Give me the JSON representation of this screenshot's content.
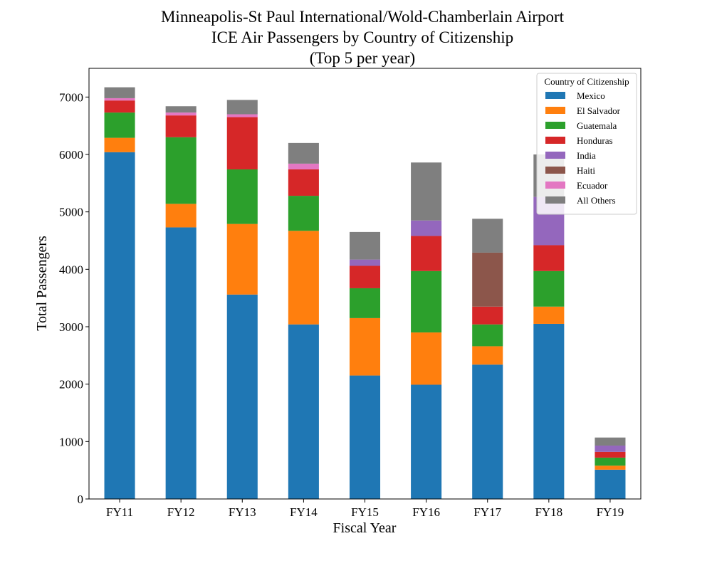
{
  "chart_data": {
    "type": "bar",
    "stacked": true,
    "title_lines": [
      "Minneapolis-St Paul International/Wold-Chamberlain Airport",
      "ICE Air Passengers by Country of Citizenship",
      "(Top 5 per year)"
    ],
    "xlabel": "Fiscal Year",
    "ylabel": "Total Passengers",
    "ylim": [
      0,
      7500
    ],
    "yticks": [
      0,
      1000,
      2000,
      3000,
      4000,
      5000,
      6000,
      7000
    ],
    "categories": [
      "FY11",
      "FY12",
      "FY13",
      "FY14",
      "FY15",
      "FY16",
      "FY17",
      "FY18",
      "FY19"
    ],
    "legend": {
      "title": "Country of Citizenship",
      "position": "top-right"
    },
    "series": [
      {
        "name": "Mexico",
        "color": "#1f77b4",
        "values": [
          6040,
          4730,
          3560,
          3040,
          2150,
          1990,
          2340,
          3050,
          510
        ]
      },
      {
        "name": "El Salvador",
        "color": "#ff7f0e",
        "values": [
          250,
          410,
          1230,
          1630,
          1000,
          910,
          320,
          300,
          70
        ]
      },
      {
        "name": "Guatemala",
        "color": "#2ca02c",
        "values": [
          440,
          1160,
          950,
          610,
          520,
          1070,
          380,
          620,
          140
        ]
      },
      {
        "name": "Honduras",
        "color": "#d62728",
        "values": [
          210,
          380,
          910,
          460,
          390,
          610,
          310,
          450,
          100
        ]
      },
      {
        "name": "India",
        "color": "#9467bd",
        "values": [
          0,
          0,
          0,
          0,
          110,
          270,
          0,
          840,
          110
        ]
      },
      {
        "name": "Haiti",
        "color": "#8c564b",
        "values": [
          0,
          0,
          0,
          0,
          0,
          0,
          940,
          0,
          0
        ]
      },
      {
        "name": "Ecuador",
        "color": "#e377c2",
        "values": [
          40,
          50,
          50,
          100,
          0,
          0,
          0,
          0,
          0
        ]
      },
      {
        "name": "All Others",
        "color": "#7f7f7f",
        "values": [
          190,
          110,
          250,
          360,
          480,
          1010,
          590,
          740,
          140
        ]
      }
    ]
  }
}
